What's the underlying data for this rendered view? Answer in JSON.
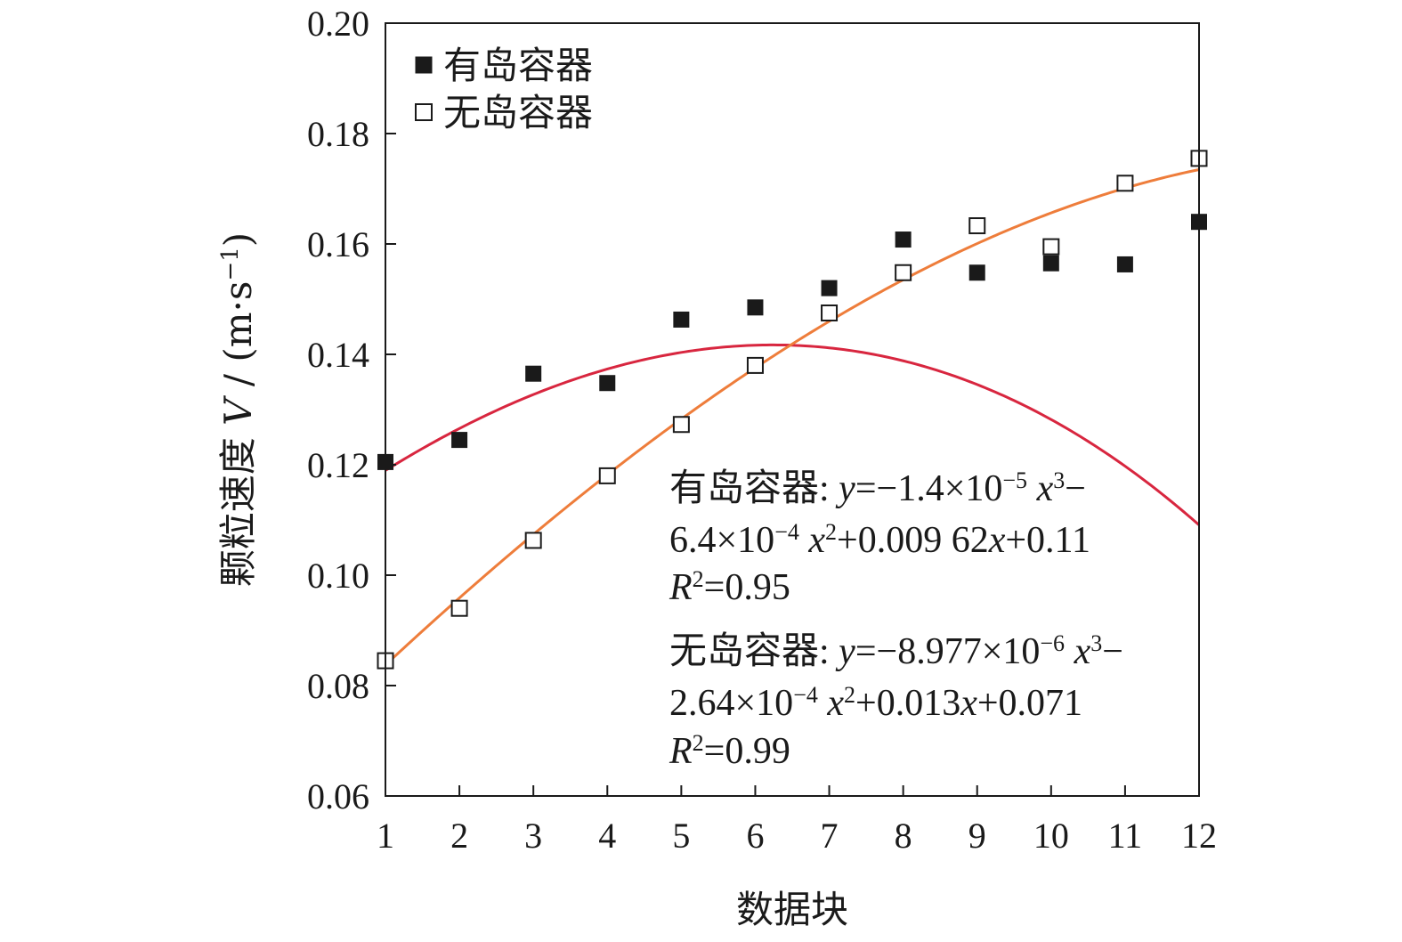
{
  "chart_data": {
    "type": "scatter",
    "x": [
      1,
      2,
      3,
      4,
      5,
      6,
      7,
      8,
      9,
      10,
      11,
      12
    ],
    "xlabel": "数据块",
    "ylabel": {
      "prefix": "颗粒速度 ",
      "var": "V",
      "unit_open": " / (m·s",
      "unit_exp": "−1",
      "unit_close": ")"
    },
    "xlim": [
      1,
      12
    ],
    "ylim": [
      0.06,
      0.2
    ],
    "xticks": [
      "1",
      "2",
      "3",
      "4",
      "5",
      "6",
      "7",
      "8",
      "9",
      "10",
      "11",
      "12"
    ],
    "yticks": [
      "0.06",
      "0.08",
      "0.10",
      "0.12",
      "0.14",
      "0.16",
      "0.18",
      "0.20"
    ],
    "grid": false,
    "legend_position": "top-left",
    "series": [
      {
        "name": "有岛容器",
        "marker": "filled-square",
        "color": "#1a1a1a",
        "fit_color": "#d8263f",
        "values": [
          0.1205,
          0.1245,
          0.1365,
          0.1348,
          0.1463,
          0.1485,
          0.152,
          0.1608,
          0.1548,
          0.1565,
          0.1563,
          0.164
        ],
        "fit": {
          "a3": -1.4e-05,
          "a2": -0.00064,
          "a1": 0.00962,
          "a0": 0.11
        }
      },
      {
        "name": "无岛容器",
        "marker": "open-square",
        "color": "#1a1a1a",
        "fit_color": "#ee7d3b",
        "values": [
          0.0845,
          0.094,
          0.1063,
          0.118,
          0.1273,
          0.138,
          0.1475,
          0.1548,
          0.1633,
          0.1595,
          0.171,
          0.1755
        ],
        "fit": {
          "a3": -8.977e-06,
          "a2": -0.000264,
          "a1": 0.013,
          "a0": 0.071
        }
      }
    ],
    "annotations": {
      "eq1": {
        "line1": [
          {
            "t": "有岛容器: "
          },
          {
            "t": "y",
            "i": true
          },
          {
            "t": "=−1.4×10"
          },
          {
            "t": "−5",
            "sup": true
          },
          {
            "t": " "
          },
          {
            "t": "x",
            "i": true
          },
          {
            "t": "3",
            "sup": true
          },
          {
            "t": "−"
          }
        ],
        "line2": [
          {
            "t": "6.4×10"
          },
          {
            "t": "−4",
            "sup": true
          },
          {
            "t": " "
          },
          {
            "t": "x",
            "i": true
          },
          {
            "t": "2",
            "sup": true
          },
          {
            "t": "+0.009 62"
          },
          {
            "t": "x",
            "i": true
          },
          {
            "t": "+0.11"
          }
        ],
        "line3": [
          {
            "t": "R",
            "i": true
          },
          {
            "t": "2",
            "sup": true
          },
          {
            "t": "=0.95"
          }
        ]
      },
      "eq2": {
        "line1": [
          {
            "t": "无岛容器: "
          },
          {
            "t": "y",
            "i": true
          },
          {
            "t": "=−8.977×10"
          },
          {
            "t": "−6",
            "sup": true
          },
          {
            "t": " "
          },
          {
            "t": "x",
            "i": true
          },
          {
            "t": "3",
            "sup": true
          },
          {
            "t": "−"
          }
        ],
        "line2": [
          {
            "t": "2.64×10"
          },
          {
            "t": "−4",
            "sup": true
          },
          {
            "t": " "
          },
          {
            "t": "x",
            "i": true
          },
          {
            "t": "2",
            "sup": true
          },
          {
            "t": "+0.013"
          },
          {
            "t": "x",
            "i": true
          },
          {
            "t": "+0.071"
          }
        ],
        "line3": [
          {
            "t": "R",
            "i": true
          },
          {
            "t": "2",
            "sup": true
          },
          {
            "t": "=0.99"
          }
        ]
      }
    }
  }
}
